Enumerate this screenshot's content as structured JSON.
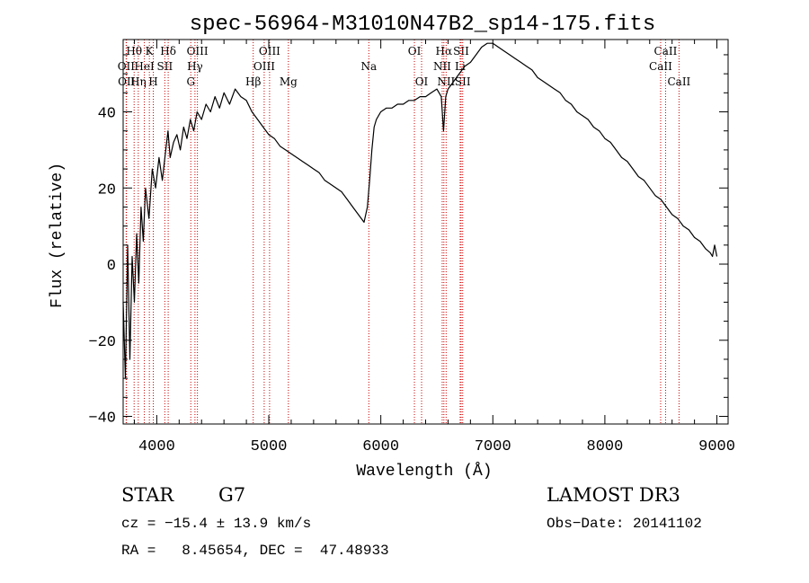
{
  "chart_data": {
    "type": "line",
    "title": "spec-56964-M31010N47B2_sp14-175.fits",
    "xlabel": "Wavelength (Å)",
    "ylabel": "Flux (relative)",
    "xlim": [
      3700,
      9100
    ],
    "ylim": [
      -42,
      59
    ],
    "xticks": [
      4000,
      5000,
      6000,
      7000,
      8000,
      9000
    ],
    "yticks": [
      -40,
      -20,
      0,
      20,
      40
    ],
    "grid": false,
    "series": [
      {
        "x": [
          3700,
          3720,
          3740,
          3760,
          3780,
          3800,
          3820,
          3840,
          3860,
          3880,
          3900,
          3930,
          3960,
          3990,
          4020,
          4050,
          4080,
          4100,
          4120,
          4150,
          4180,
          4210,
          4240,
          4270,
          4300,
          4330,
          4360,
          4400,
          4440,
          4480,
          4520,
          4560,
          4600,
          4650,
          4700,
          4750,
          4800,
          4850,
          4900,
          4950,
          5000,
          5050,
          5100,
          5150,
          5200,
          5250,
          5300,
          5350,
          5400,
          5450,
          5500,
          5550,
          5600,
          5650,
          5700,
          5750,
          5800,
          5850,
          5880,
          5900,
          5920,
          5940,
          5960,
          6000,
          6050,
          6100,
          6150,
          6200,
          6250,
          6300,
          6350,
          6400,
          6450,
          6500,
          6540,
          6560,
          6580,
          6600,
          6650,
          6700,
          6750,
          6800,
          6850,
          6900,
          6950,
          7000,
          7050,
          7100,
          7150,
          7200,
          7250,
          7300,
          7350,
          7400,
          7450,
          7500,
          7550,
          7600,
          7650,
          7700,
          7750,
          7800,
          7850,
          7900,
          7950,
          8000,
          8050,
          8100,
          8150,
          8200,
          8250,
          8300,
          8350,
          8400,
          8450,
          8500,
          8550,
          8600,
          8650,
          8700,
          8750,
          8800,
          8850,
          8900,
          8940,
          8960,
          8980,
          9000
        ],
        "y": [
          -10,
          -30,
          5,
          -25,
          2,
          -10,
          8,
          -5,
          15,
          6,
          20,
          12,
          25,
          20,
          28,
          22,
          30,
          35,
          28,
          32,
          34,
          30,
          36,
          33,
          38,
          35,
          40,
          38,
          42,
          40,
          44,
          41,
          45,
          42,
          46,
          44,
          43,
          40,
          38,
          36,
          34,
          33,
          31,
          30,
          29,
          28,
          27,
          26,
          25,
          24,
          22,
          21,
          20,
          19,
          17,
          15,
          13,
          11,
          15,
          22,
          30,
          36,
          38,
          40,
          41,
          41,
          42,
          42,
          43,
          43,
          44,
          44,
          45,
          46,
          44,
          35,
          44,
          46,
          48,
          50,
          52,
          53,
          55,
          57,
          58,
          58,
          57,
          56,
          55,
          54,
          53,
          52,
          51,
          49,
          48,
          47,
          46,
          45,
          43,
          42,
          40,
          39,
          38,
          36,
          35,
          33,
          32,
          30,
          28,
          27,
          25,
          23,
          22,
          20,
          18,
          17,
          15,
          13,
          12,
          10,
          9,
          7,
          6,
          4,
          3,
          2,
          5,
          2
        ]
      }
    ],
    "line_markers": [
      {
        "label": "Hθ",
        "x": 3798,
        "row": 1
      },
      {
        "label": "K",
        "x": 3934,
        "row": 1
      },
      {
        "label": "Hδ",
        "x": 4102,
        "row": 1
      },
      {
        "label": "OII",
        "x": 3727,
        "row": 2
      },
      {
        "label": "HeI",
        "x": 3889,
        "row": 2
      },
      {
        "label": "SII",
        "x": 4072,
        "row": 2
      },
      {
        "label": "OII",
        "x": 3730,
        "row": 3
      },
      {
        "label": "Hη",
        "x": 3835,
        "row": 3
      },
      {
        "label": "H",
        "x": 3969,
        "row": 3
      },
      {
        "label": "OIII",
        "x": 4363,
        "row": 1
      },
      {
        "label": "Hγ",
        "x": 4341,
        "row": 2
      },
      {
        "label": "G",
        "x": 4304,
        "row": 3
      },
      {
        "label": "OIII",
        "x": 5007,
        "row": 1
      },
      {
        "label": "OIII",
        "x": 4959,
        "row": 2
      },
      {
        "label": "Hβ",
        "x": 4861,
        "row": 3
      },
      {
        "label": "Mg",
        "x": 5175,
        "row": 3
      },
      {
        "label": "Na",
        "x": 5893,
        "row": 2
      },
      {
        "label": "OI",
        "x": 6300,
        "row": 1
      },
      {
        "label": "OI",
        "x": 6364,
        "row": 3
      },
      {
        "label": "Hα",
        "x": 6563,
        "row": 1
      },
      {
        "label": "SII",
        "x": 6717,
        "row": 1
      },
      {
        "label": "NII",
        "x": 6548,
        "row": 2
      },
      {
        "label": "Li",
        "x": 6708,
        "row": 2
      },
      {
        "label": "NII",
        "x": 6583,
        "row": 3
      },
      {
        "label": "SII",
        "x": 6731,
        "row": 3
      },
      {
        "label": "CaII",
        "x": 8542,
        "row": 1
      },
      {
        "label": "CaII",
        "x": 8498,
        "row": 2
      },
      {
        "label": "CaII",
        "x": 8662,
        "row": 3
      }
    ]
  },
  "info": {
    "object_class": "STAR",
    "subclass": "G7",
    "survey": "LAMOST DR3",
    "redshift": "cz = −15.4 ± 13.9 km/s",
    "obs_date": "Obs−Date: 20141102",
    "coords": "RA =   8.45654, DEC =  47.48933"
  }
}
